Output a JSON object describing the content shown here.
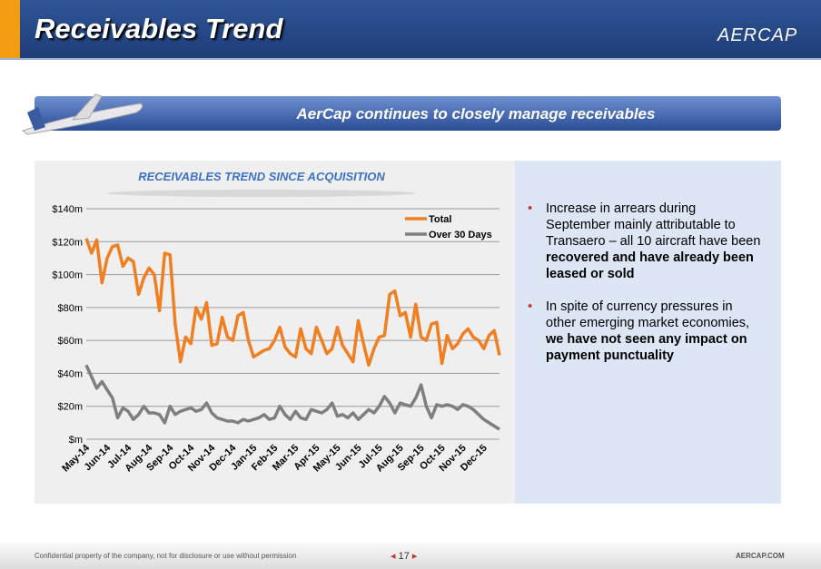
{
  "header": {
    "title": "Receivables Trend",
    "logo": "AERCAP"
  },
  "banner": "AerCap continues to closely manage receivables",
  "bullets": [
    {
      "text": "Increase in arrears during September mainly attributable to Transaero – all 10 aircraft have been ",
      "emphasis": "recovered and have already been leased or sold"
    },
    {
      "text": "In spite of currency pressures in other emerging market economies, ",
      "emphasis": "we have not seen any impact on payment punctuality"
    }
  ],
  "footer": {
    "note": "Confidential property of the company, not for disclosure or use without permission",
    "page": "17",
    "site": "AERCAP.COM"
  },
  "chart_data": {
    "type": "line",
    "title": "RECEIVABLES TREND SINCE ACQUISITION",
    "categories": [
      "May-14",
      null,
      null,
      null,
      "Jun-14",
      null,
      null,
      null,
      "Jul-14",
      null,
      null,
      null,
      "Aug-14",
      null,
      null,
      null,
      "Sep-14",
      null,
      null,
      null,
      "Oct-14",
      null,
      null,
      null,
      "Nov-14",
      null,
      null,
      null,
      "Dec-14",
      null,
      null,
      null,
      "Jan-15",
      null,
      null,
      null,
      "Feb-15",
      null,
      null,
      null,
      "Mar-15",
      null,
      null,
      null,
      "Apr-15",
      null,
      null,
      null,
      "May-15",
      null,
      null,
      null,
      "Jun-15",
      null,
      null,
      null,
      "Jul-15",
      null,
      null,
      null,
      "Aug-15",
      null,
      null,
      null,
      "Sep-15",
      null,
      null,
      null,
      "Oct-15",
      null,
      null,
      null,
      "Nov-15",
      null,
      null,
      null,
      "Dec-15",
      null,
      null,
      null
    ],
    "series": [
      {
        "name": "Total",
        "color": "#f07f22",
        "values": [
          122,
          113,
          121,
          95,
          110,
          117,
          118,
          105,
          110,
          108,
          88,
          98,
          104,
          100,
          78,
          113,
          112,
          70,
          47,
          62,
          58,
          80,
          73,
          83,
          57,
          58,
          74,
          62,
          60,
          75,
          77,
          60,
          50,
          52,
          54,
          55,
          60,
          68,
          56,
          52,
          50,
          67,
          55,
          52,
          68,
          60,
          52,
          55,
          68,
          57,
          52,
          47,
          72,
          58,
          45,
          55,
          62,
          63,
          88,
          90,
          75,
          77,
          62,
          82,
          62,
          60,
          70,
          71,
          46,
          63,
          55,
          58,
          64,
          67,
          62,
          60,
          55,
          63,
          66,
          51
        ]
      },
      {
        "name": "Over 30 Days",
        "color": "#7f7f7f",
        "values": [
          45,
          38,
          31,
          35,
          30,
          25,
          13,
          19,
          17,
          12,
          15,
          20,
          16,
          16,
          15,
          10,
          20,
          15,
          17,
          18,
          19,
          17,
          18,
          22,
          16,
          13,
          12,
          11,
          11,
          10,
          12,
          11,
          12,
          13,
          15,
          12,
          13,
          20,
          15,
          12,
          17,
          13,
          12,
          18,
          17,
          16,
          18,
          22,
          14,
          15,
          13,
          16,
          12,
          15,
          18,
          16,
          20,
          26,
          22,
          16,
          22,
          21,
          20,
          25,
          33,
          20,
          13,
          21,
          20,
          21,
          20,
          18,
          21,
          20,
          18,
          15,
          12,
          10,
          8,
          6
        ]
      }
    ],
    "ylim": [
      0,
      140
    ],
    "yticks": [
      {
        "value": 0,
        "label": "$m"
      },
      {
        "value": 20,
        "label": "$20m"
      },
      {
        "value": 40,
        "label": "$40m"
      },
      {
        "value": 60,
        "label": "$60m"
      },
      {
        "value": 80,
        "label": "$80m"
      },
      {
        "value": 100,
        "label": "$100m"
      },
      {
        "value": 120,
        "label": "$120m"
      },
      {
        "value": 140,
        "label": "$140m"
      }
    ],
    "grid": true,
    "legend": "top-right"
  }
}
